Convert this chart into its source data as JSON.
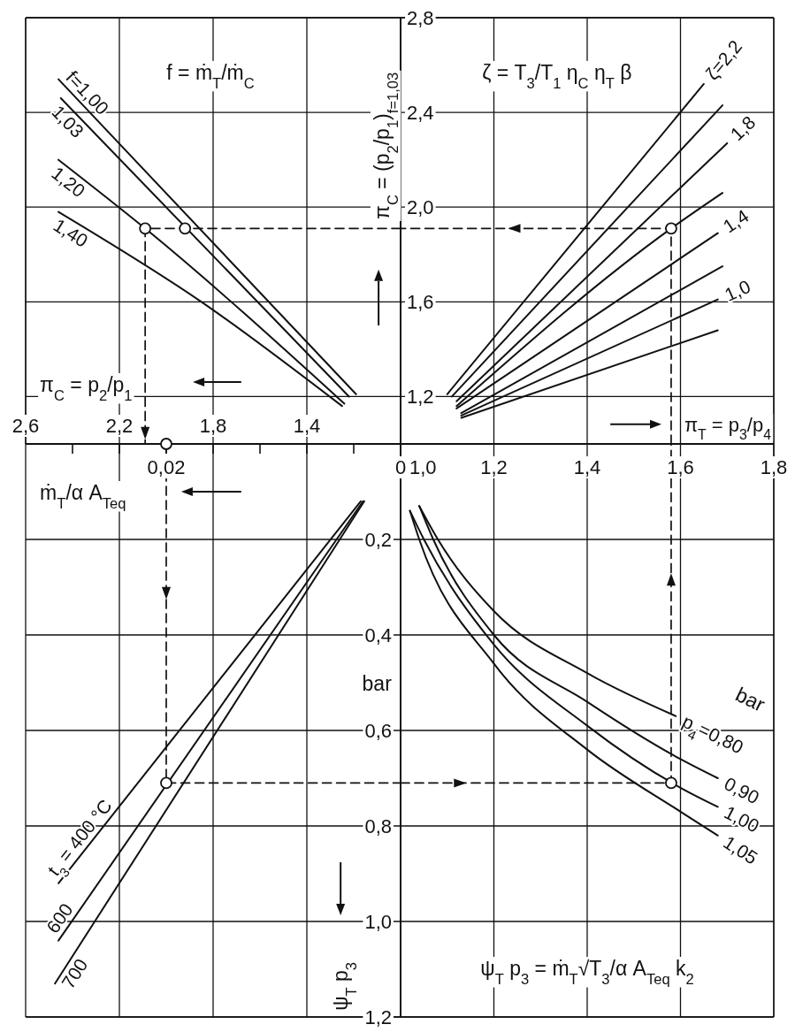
{
  "chart_data": [
    {
      "type": "line",
      "xlabel": "π$_{C}$ = p$_{2}$/p$_{1}$",
      "annotations": [
        "f = ṁ$_{T}$/ṁ$_{C}$"
      ],
      "xlim": [
        2.6,
        1.0
      ],
      "xticks": [
        {
          "value": 2.6,
          "label": "2,6"
        },
        {
          "value": 2.2,
          "label": "2,2"
        },
        {
          "value": 1.8,
          "label": "1,8"
        },
        {
          "value": 1.4,
          "label": "1,4"
        }
      ],
      "ylim": [
        1.0,
        2.8
      ],
      "yticks": [
        1.2,
        1.6,
        2.0,
        2.4,
        2.8
      ],
      "tick_labels": "x",
      "grid": true,
      "series": [
        {
          "name": "f=1,00",
          "color": "#111111",
          "x": [
            2.46,
            1.19
          ],
          "values": [
            2.54,
            1.21
          ]
        },
        {
          "name": "1,03",
          "color": "#111111",
          "x": [
            2.45,
            1.22
          ],
          "values": [
            2.46,
            1.2
          ]
        },
        {
          "name": "1,20",
          "color": "#111111",
          "x": [
            2.46,
            2.09,
            1.24
          ],
          "values": [
            2.2,
            1.91,
            1.17
          ]
        },
        {
          "name": "1,40",
          "color": "#111111",
          "x": [
            2.46,
            1.85,
            1.25
          ],
          "values": [
            1.98,
            1.6,
            1.16
          ]
        },
        {
          "type": "line",
          "line_style": "dashed",
          "color": "#111111",
          "x": [
            1.0,
            2.09,
            2.09
          ],
          "values": [
            1.91,
            1.91,
            1.0
          ]
        },
        {
          "type": "scatter",
          "marker": "circle",
          "color": "#111111",
          "x": [
            2.09,
            1.92
          ],
          "values": [
            1.91,
            1.91
          ]
        }
      ]
    },
    {
      "type": "line",
      "xlabel": "π$_{T}$ = p$_{3}$/p$_{4}$",
      "ylabel": "π$_{C}$ = (p$_{2}$/p$_{1}$)$_{f=1,03}$",
      "annotations": [
        "ζ = T$_{3}$/T$_{1}$ η$_{C}$ η$_{T}$ β"
      ],
      "xlim": [
        1.0,
        1.8
      ],
      "xticks": [
        1.2,
        1.4,
        1.6,
        1.8
      ],
      "ylim": [
        1.0,
        2.8
      ],
      "yticks": [
        {
          "value": 1.2,
          "label": "1,2"
        },
        {
          "value": 1.6,
          "label": "1,6"
        },
        {
          "value": 2.0,
          "label": "2,0"
        },
        {
          "value": 2.4,
          "label": "2,4"
        },
        {
          "value": 2.8,
          "label": "2,8"
        }
      ],
      "tick_labels": "y",
      "grid": true,
      "series": [
        {
          "name": "ζ=2,2",
          "color": "#111111",
          "x": [
            1.1,
            1.65
          ],
          "values": [
            1.21,
            2.52
          ]
        },
        {
          "color": "#111111",
          "x": [
            1.11,
            1.69
          ],
          "values": [
            1.2,
            2.43
          ]
        },
        {
          "name": "1,8",
          "color": "#111111",
          "x": [
            1.12,
            1.7
          ],
          "values": [
            1.18,
            2.27
          ]
        },
        {
          "color": "#111111",
          "x": [
            1.12,
            1.58,
            1.69
          ],
          "values": [
            1.16,
            1.91,
            2.06
          ]
        },
        {
          "name": "1,4",
          "color": "#111111",
          "x": [
            1.12,
            1.68
          ],
          "values": [
            1.15,
            1.89
          ]
        },
        {
          "color": "#111111",
          "x": [
            1.13,
            1.69
          ],
          "values": [
            1.13,
            1.75
          ]
        },
        {
          "name": "1,0",
          "color": "#111111",
          "x": [
            1.13,
            1.68
          ],
          "values": [
            1.12,
            1.61
          ]
        },
        {
          "color": "#111111",
          "x": [
            1.13,
            1.68
          ],
          "values": [
            1.11,
            1.48
          ]
        },
        {
          "type": "line",
          "line_style": "dashed",
          "color": "#111111",
          "x": [
            1.58,
            1.58,
            1.0
          ],
          "values": [
            1.0,
            1.91,
            1.91
          ]
        },
        {
          "type": "scatter",
          "marker": "circle",
          "color": "#111111",
          "x": [
            1.58
          ],
          "values": [
            1.91
          ]
        }
      ]
    },
    {
      "type": "line",
      "xlabel": "ṁ$_{T}$/α A$_{Teq}$",
      "ylabel": "ψ$_{T}$ p$_{3}$",
      "annotations": [
        "bar"
      ],
      "xlim": [
        0.032,
        0
      ],
      "xticks": [
        {
          "value": 0,
          "label": "0"
        },
        {
          "value": 0.004,
          "label": null
        },
        {
          "value": 0.008,
          "label": null
        },
        {
          "value": 0.012,
          "label": null
        },
        {
          "value": 0.016,
          "label": null
        },
        {
          "value": 0.02,
          "label": "0,02"
        },
        {
          "value": 0.024,
          "label": null
        },
        {
          "value": 0.028,
          "label": null
        }
      ],
      "ylim": [
        1.2,
        0
      ],
      "yticks": [
        {
          "value": 0.2,
          "label": "0,2"
        },
        {
          "value": 0.4,
          "label": "0,4"
        },
        {
          "value": 0.6,
          "label": "0,6"
        },
        {
          "value": 0.8,
          "label": "0,8"
        },
        {
          "value": 1.0,
          "label": "1,0"
        },
        {
          "value": 1.2,
          "label": "1,2"
        }
      ],
      "grid": true,
      "series": [
        {
          "name": "t$_{3}$ = 400 °C",
          "color": "#111111",
          "x": [
            0.0292,
            0.0034
          ],
          "values": [
            0.92,
            0.12
          ]
        },
        {
          "name": "600",
          "color": "#111111",
          "x": [
            0.0292,
            0.0032
          ],
          "values": [
            1.04,
            0.12
          ]
        },
        {
          "name": "700",
          "color": "#111111",
          "x": [
            0.0295,
            0.0031
          ],
          "values": [
            1.13,
            0.12
          ]
        },
        {
          "type": "line",
          "line_style": "dashed",
          "color": "#111111",
          "x": [
            0.02,
            0.02,
            0
          ],
          "values": [
            0,
            0.71,
            0.71
          ]
        },
        {
          "type": "scatter",
          "marker": "circle",
          "color": "#111111",
          "x": [
            0.02,
            0.02
          ],
          "values": [
            0,
            0.71
          ]
        }
      ]
    },
    {
      "type": "line",
      "annotations": [
        "bar",
        "ψ$_{T}$ p$_{3}$ = ṁ$_{T}$√T$_{3}$/α A$_{Teq}$ k$_{2}$"
      ],
      "xlim": [
        1.0,
        1.8
      ],
      "xticks": [
        {
          "value": 1.0,
          "label": "1,0"
        },
        {
          "value": 1.2,
          "label": "1,2"
        },
        {
          "value": 1.4,
          "label": "1,4"
        },
        {
          "value": 1.6,
          "label": "1,6"
        },
        {
          "value": 1.8,
          "label": "1,8"
        }
      ],
      "ylim": [
        1.2,
        0
      ],
      "yticks": [
        0.2,
        0.4,
        0.6,
        0.8,
        1.0,
        1.2
      ],
      "tick_labels": "x",
      "grid": true,
      "series": [
        {
          "name": "p$_{4}$=0,80",
          "color": "#111111",
          "x": [
            1.04,
            1.08,
            1.2,
            1.4,
            1.59
          ],
          "values": [
            0.13,
            0.2,
            0.35,
            0.48,
            0.57
          ]
        },
        {
          "name": "0,90",
          "color": "#111111",
          "x": [
            1.04,
            1.07,
            1.2,
            1.4,
            1.6,
            1.68
          ],
          "values": [
            0.13,
            0.2,
            0.4,
            0.54,
            0.66,
            0.7
          ]
        },
        {
          "name": "1,00",
          "color": "#111111",
          "x": [
            1.02,
            1.05,
            1.2,
            1.4,
            1.6,
            1.68
          ],
          "values": [
            0.14,
            0.2,
            0.42,
            0.59,
            0.72,
            0.76
          ]
        },
        {
          "name": "1,05",
          "color": "#111111",
          "x": [
            1.02,
            1.04,
            1.2,
            1.4,
            1.6,
            1.68
          ],
          "values": [
            0.14,
            0.2,
            0.46,
            0.64,
            0.77,
            0.82
          ]
        },
        {
          "type": "line",
          "line_style": "dashed",
          "color": "#111111",
          "x": [
            1.0,
            1.58,
            1.58
          ],
          "values": [
            0.71,
            0.71,
            0
          ]
        },
        {
          "type": "scatter",
          "marker": "circle",
          "color": "#111111",
          "x": [
            1.58
          ],
          "values": [
            0.71
          ]
        }
      ]
    }
  ]
}
